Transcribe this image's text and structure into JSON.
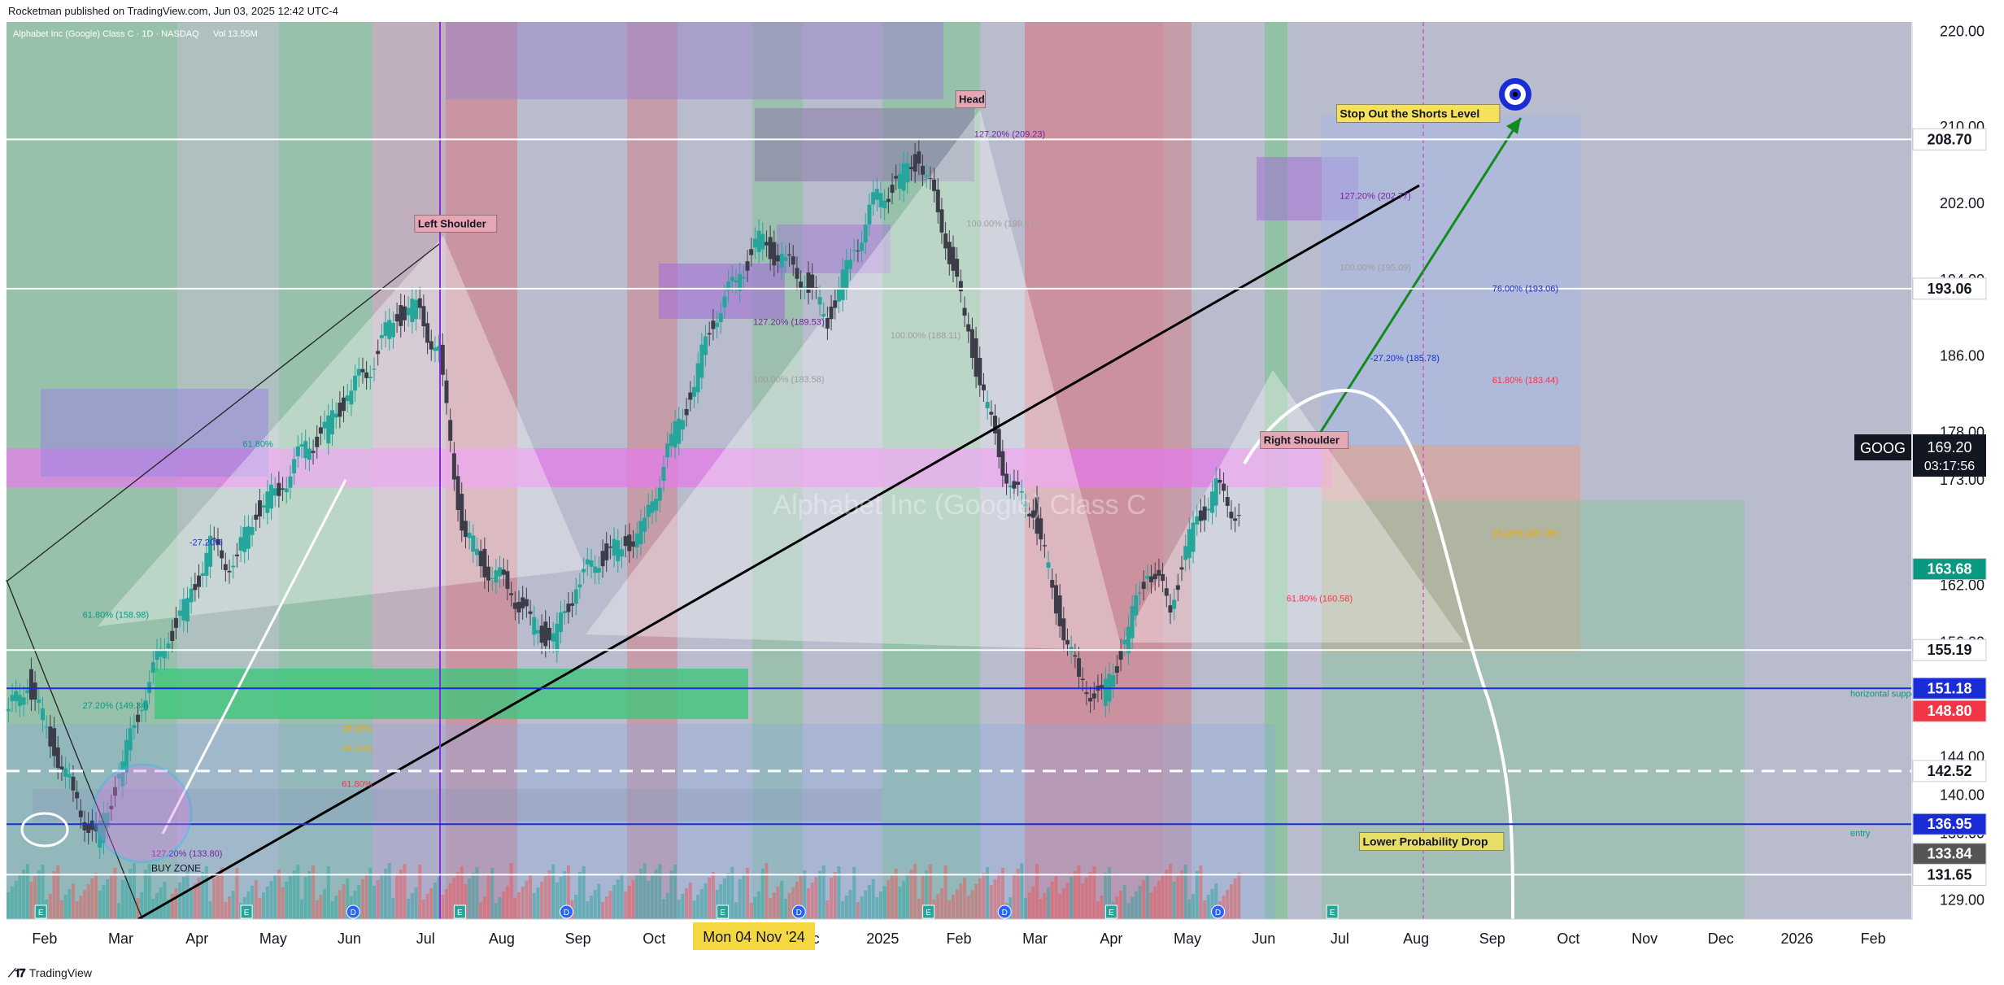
{
  "header": {
    "published": "Rocketman published on TradingView.com, Jun 03, 2025 12:42 UTC-4"
  },
  "footer": {
    "brand": "TradingView"
  },
  "chart_data": {
    "type": "candlestick",
    "symbol_legend": "Alphabet Inc (Google) Class C · 1D · NASDAQ",
    "volume_label": "Vol",
    "volume_value": "13.55M",
    "watermark": "Alphabet Inc (Google) Class C",
    "ticker": "GOOG",
    "last_price": "169.20",
    "countdown": "03:17:56",
    "crosshair_date": "Mon 04 Nov '24",
    "ylim": [
      127,
      221
    ],
    "y_ticks": [
      "220.00",
      "210.00",
      "202.00",
      "194.00",
      "186.00",
      "178.00",
      "173.00",
      "162.00",
      "156.00",
      "151.00",
      "144.00",
      "140.00",
      "136.00",
      "129.00"
    ],
    "x_ticks": [
      {
        "label": "Feb",
        "t": 0.5
      },
      {
        "label": "Mar",
        "t": 1.5
      },
      {
        "label": "Apr",
        "t": 2.5
      },
      {
        "label": "May",
        "t": 3.5
      },
      {
        "label": "Jun",
        "t": 4.5
      },
      {
        "label": "Jul",
        "t": 5.5
      },
      {
        "label": "Aug",
        "t": 6.5
      },
      {
        "label": "Sep",
        "t": 7.5
      },
      {
        "label": "Oct",
        "t": 8.5
      },
      {
        "label": "Dec",
        "t": 10.5
      },
      {
        "label": "2025",
        "t": 11.5
      },
      {
        "label": "Feb",
        "t": 12.5
      },
      {
        "label": "Mar",
        "t": 13.5
      },
      {
        "label": "Apr",
        "t": 14.5
      },
      {
        "label": "May",
        "t": 15.5
      },
      {
        "label": "Jun",
        "t": 16.5
      },
      {
        "label": "Jul",
        "t": 17.5
      },
      {
        "label": "Aug",
        "t": 18.5
      },
      {
        "label": "Sep",
        "t": 19.5
      },
      {
        "label": "Oct",
        "t": 20.5
      },
      {
        "label": "Nov",
        "t": 21.5
      },
      {
        "label": "Dec",
        "t": 22.5
      },
      {
        "label": "2026",
        "t": 23.5
      },
      {
        "label": "Feb",
        "t": 24.5
      }
    ],
    "price_levels": [
      {
        "price": 208.7,
        "label": "208.70",
        "bg": "#ffffff",
        "fg": "#131722",
        "line": "#ffffff",
        "dash": false
      },
      {
        "price": 193.06,
        "label": "193.06",
        "bg": "#ffffff",
        "fg": "#131722",
        "line": "#ffffff",
        "dash": false
      },
      {
        "price": 163.68,
        "label": "163.68",
        "bg": "#089981",
        "fg": "#ffffff",
        "line": null,
        "dash": false
      },
      {
        "price": 155.19,
        "label": "155.19",
        "bg": "#ffffff",
        "fg": "#131722",
        "line": "#ffffff",
        "dash": false
      },
      {
        "price": 151.18,
        "label": "151.18",
        "bg": "#1a2cd6",
        "fg": "#ffffff",
        "line": "#1a2cd6",
        "dash": false
      },
      {
        "price": 148.8,
        "label": "148.80",
        "bg": "#f23645",
        "fg": "#ffffff",
        "line": null,
        "dash": false
      },
      {
        "price": 142.52,
        "label": "142.52",
        "bg": "#ffffff",
        "fg": "#131722",
        "line": "#ffffff",
        "dash": true
      },
      {
        "price": 136.95,
        "label": "136.95",
        "bg": "#1a2cd6",
        "fg": "#ffffff",
        "line": "#1a2cd6",
        "dash": false
      },
      {
        "price": 133.84,
        "label": "133.84",
        "bg": "#555555",
        "fg": "#ffffff",
        "line": null,
        "dash": false
      },
      {
        "price": 131.65,
        "label": "131.65",
        "bg": "#ffffff",
        "fg": "#131722",
        "line": "#ffffff",
        "dash": false
      }
    ],
    "annotations": [
      {
        "text": "Left Shoulder",
        "t": 5.4,
        "price": 199.5,
        "style": "tag-pink"
      },
      {
        "text": "Head",
        "t": 12.5,
        "price": 212.5,
        "style": "tag-pink"
      },
      {
        "text": "Right Shoulder",
        "t": 16.5,
        "price": 176.8,
        "style": "tag-pink"
      },
      {
        "text": "Stop Out the Shorts Level",
        "t": 17.5,
        "price": 211.0,
        "style": "tag-yellow"
      },
      {
        "text": "Lower Probability Drop",
        "t": 17.8,
        "price": 134.7,
        "style": "tag-yellow-box"
      },
      {
        "text": "BUY ZONE",
        "t": 1.9,
        "price": 132.0,
        "style": "plain"
      },
      {
        "text": "horizontal support",
        "t": 24.2,
        "price": 150.3,
        "style": "small-green"
      },
      {
        "text": "entry",
        "t": 24.2,
        "price": 135.7,
        "style": "small-green"
      }
    ],
    "fib_labels": [
      {
        "text": "127.20% (202.77)",
        "t": 17.5,
        "price": 202.8,
        "color": "#7b1fa2"
      },
      {
        "text": "100.00% (195.09)",
        "t": 17.5,
        "price": 195.3,
        "color": "#9e9e9e"
      },
      {
        "text": "76.00% (193.06)",
        "t": 19.5,
        "price": 193.1,
        "color": "#1a2cd6"
      },
      {
        "text": "-27.20% (185.78)",
        "t": 17.9,
        "price": 185.8,
        "color": "#1a2cd6"
      },
      {
        "text": "61.80% (183.44)",
        "t": 19.5,
        "price": 183.5,
        "color": "#f23645"
      },
      {
        "text": "38.20% (167.45)",
        "t": 19.5,
        "price": 167.5,
        "color": "#f2a900"
      },
      {
        "text": "61.80% (160.58)",
        "t": 16.8,
        "price": 160.6,
        "color": "#f23645"
      },
      {
        "text": "127.20% (209.23)",
        "t": 12.7,
        "price": 209.3,
        "color": "#7b1fa2"
      },
      {
        "text": "100.00% (199.87)",
        "t": 12.6,
        "price": 199.9,
        "color": "#9e9e9e"
      },
      {
        "text": "127.20% (189.53)",
        "t": 9.8,
        "price": 189.6,
        "color": "#7b1fa2"
      },
      {
        "text": "100.00% (183.58)",
        "t": 9.8,
        "price": 183.6,
        "color": "#9e9e9e"
      },
      {
        "text": "100.00% (188.11)",
        "t": 11.6,
        "price": 188.2,
        "color": "#9e9e9e"
      },
      {
        "text": "-27.20%",
        "t": 2.4,
        "price": 166.5,
        "color": "#1a2cd6"
      },
      {
        "text": "38.20%",
        "t": 4.4,
        "price": 147.0,
        "color": "#f2a900"
      },
      {
        "text": "48.60%",
        "t": 4.4,
        "price": 144.9,
        "color": "#f2a900"
      },
      {
        "text": "61.80%",
        "t": 4.4,
        "price": 141.2,
        "color": "#f23645"
      },
      {
        "text": "61.80% (158.98)",
        "t": 1.0,
        "price": 158.9,
        "color": "#089981"
      },
      {
        "text": "27.20% (149.34)",
        "t": 1.0,
        "price": 149.4,
        "color": "#089981"
      },
      {
        "text": "61.80%",
        "t": 3.1,
        "price": 176.8,
        "color": "#089981"
      },
      {
        "text": "127.20% (133.80)",
        "t": 1.9,
        "price": 133.9,
        "color": "#7b1fa2"
      }
    ],
    "event_markers": [
      {
        "t": 0.45,
        "kind": "E"
      },
      {
        "t": 3.15,
        "kind": "E"
      },
      {
        "t": 4.55,
        "kind": "D"
      },
      {
        "t": 5.95,
        "kind": "E"
      },
      {
        "t": 7.35,
        "kind": "D"
      },
      {
        "t": 9.4,
        "kind": "E"
      },
      {
        "t": 10.4,
        "kind": "D"
      },
      {
        "t": 12.1,
        "kind": "E"
      },
      {
        "t": 13.1,
        "kind": "D"
      },
      {
        "t": 14.5,
        "kind": "E"
      },
      {
        "t": 15.9,
        "kind": "D"
      },
      {
        "t": 17.4,
        "kind": "E"
      }
    ],
    "series": [
      {
        "name": "",
        "t": [
          0.0,
          0.3,
          0.6,
          0.9,
          1.2,
          1.5,
          1.8,
          2.1,
          2.4,
          2.7,
          3.0,
          3.3,
          3.6,
          3.9,
          4.2,
          4.5,
          4.8,
          5.1,
          5.4,
          5.7,
          6.0,
          6.3,
          6.6,
          6.9,
          7.2,
          7.5,
          7.8,
          8.1,
          8.4,
          8.7,
          9.0,
          9.3,
          9.6,
          9.9,
          10.2,
          10.5,
          10.8,
          11.1,
          11.4,
          11.7,
          12.0,
          12.3,
          12.6,
          12.9,
          13.2,
          13.5,
          13.8,
          14.1,
          14.4,
          14.7,
          15.0,
          15.3,
          15.6,
          15.9,
          16.2
        ],
        "close": [
          148,
          152,
          146,
          140,
          135,
          142,
          150,
          156,
          160,
          166,
          164,
          170,
          172,
          176,
          178,
          182,
          185,
          190,
          191,
          186,
          168,
          164,
          162,
          158,
          156,
          162,
          165,
          166,
          168,
          176,
          182,
          190,
          194,
          198,
          196,
          194,
          190,
          196,
          202,
          204,
          207,
          200,
          190,
          180,
          172,
          170,
          160,
          152,
          150,
          156,
          164,
          160,
          168,
          172,
          169.2
        ]
      }
    ]
  }
}
